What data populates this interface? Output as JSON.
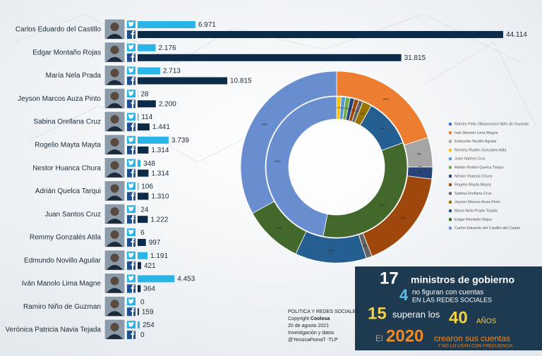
{
  "chart_data": [
    {
      "type": "bar",
      "orientation": "horizontal",
      "categories": [
        "Carlos Eduardo del Castillo",
        "Edgar Montaño Rojas",
        "María Nela Prada",
        "Jeyson Marcos Auza Pinto",
        "Sabina Orellana Cruz",
        "Rogelio Mayta Mayta",
        "Nestor Huanca Chura",
        "Adrián Quelca Tarqui",
        "Juan Santos Cruz",
        "Remmy Gonzalés Atila",
        "Edmundo Novillo Aguilar",
        "Iván Manolo Lima Magne",
        "Ramiro Niño de Guzman",
        "Verónica Patricia Navia Tejada"
      ],
      "series": [
        {
          "color": "#29b5e8",
          "values": [
            6971,
            2176,
            2713,
            28,
            114,
            3739,
            348,
            106,
            24,
            6,
            1191,
            4453,
            0,
            254
          ],
          "value_labels": [
            "6.971",
            "2.176",
            "2.713",
            "28",
            "114",
            "3.739",
            "348",
            "106",
            "24",
            "6",
            "1.191",
            "4.453",
            "0",
            "254"
          ]
        },
        {
          "color": "#0c2b48",
          "values": [
            44114,
            31815,
            10815,
            2200,
            1441,
            1314,
            1314,
            1310,
            1222,
            997,
            421,
            364,
            159,
            0
          ],
          "value_labels": [
            "44.114",
            "31.815",
            "10.815",
            "2.200",
            "1.441",
            "1.314",
            "1.314",
            "1.310",
            "1.222",
            "997",
            "421",
            "364",
            "159",
            "0"
          ]
        }
      ]
    },
    {
      "type": "donut",
      "categories": [
        "Ramiro Félix Villavicencio Niño de Guzmán",
        "Iván Manolo Lima Magne",
        "Edmundo Novillo Aguilar",
        "Remmy Rubén Gonzales Atila",
        "Juan Santos Cruz",
        "Adrián Rubén Quelca Tarqui",
        "Néstor Huanca Chura",
        "Rogelio Mayta Mayta",
        "Sabina Orellana Cruz",
        "Jeyson Marcos Auza Pinto",
        "María Nela Prada Tejada",
        "Edgar Montaño Rojas",
        "Carlos Eduardo del Castillo del Carpio"
      ],
      "colors": [
        "#4472c4",
        "#ed7d31",
        "#a5a5a5",
        "#ffc000",
        "#5b9bd5",
        "#70ad47",
        "#264478",
        "#9e480e",
        "#636363",
        "#997300",
        "#255e91",
        "#43682b",
        "#698ed0"
      ],
      "series": [
        {
          "values": [
            0,
            20,
            5,
            0,
            0,
            0,
            2,
            17,
            1,
            0,
            12,
            10,
            33
          ],
          "value_labels": [
            "0%",
            "20%",
            "5%",
            "0%",
            "0%",
            "0%",
            "2%",
            "17%",
            "1%",
            "0%",
            "12%",
            "10%",
            "33%"
          ]
        },
        {
          "values": [
            0,
            0,
            0,
            1,
            1,
            1,
            1,
            1,
            1,
            2,
            11,
            33,
            46
          ],
          "value_labels": [
            "0%",
            "0%",
            "0%",
            "1%",
            "1%",
            "1%",
            "1%",
            "1%",
            "1%",
            "2%",
            "11%",
            "33%",
            "46%"
          ]
        }
      ]
    }
  ],
  "summary": {
    "l1": {
      "big": 17,
      "text": "ministros de gobierno"
    },
    "l2": {
      "big": 4,
      "text": "no figuran con cuentas",
      "sub": "EN LAS REDES SOCIALES"
    },
    "l3": {
      "big": 15,
      "text": "superan los",
      "big2": 40,
      "text2": "AÑOS"
    },
    "l4": {
      "pre": "El",
      "big": 2020,
      "text": "crearon sus cuentas",
      "sub": "Y NO LO USAN CON FRECUENCIA"
    }
  },
  "credits": {
    "title": "POLITICA Y REDES SOCIALES",
    "copyright": "Copyright",
    "author": "Coolosa",
    "date": "20 de agosto 2021",
    "research": "Investigación y datos",
    "handle": "@YessicaPomaT -TLP"
  }
}
